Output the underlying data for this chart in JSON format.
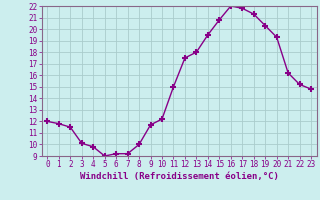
{
  "x": [
    0,
    1,
    2,
    3,
    4,
    5,
    6,
    7,
    8,
    9,
    10,
    11,
    12,
    13,
    14,
    15,
    16,
    17,
    18,
    19,
    20,
    21,
    22,
    23
  ],
  "y": [
    12.0,
    11.8,
    11.5,
    10.1,
    9.8,
    9.0,
    9.2,
    9.2,
    10.0,
    11.7,
    12.2,
    15.0,
    17.5,
    18.0,
    19.5,
    20.8,
    22.0,
    21.8,
    21.3,
    20.3,
    19.3,
    16.2,
    15.2,
    14.8
  ],
  "xlabel": "Windchill (Refroidissement éolien,°C)",
  "xlim": [
    -0.5,
    23.5
  ],
  "ylim": [
    9,
    22
  ],
  "yticks": [
    9,
    10,
    11,
    12,
    13,
    14,
    15,
    16,
    17,
    18,
    19,
    20,
    21,
    22
  ],
  "xticks": [
    0,
    1,
    2,
    3,
    4,
    5,
    6,
    7,
    8,
    9,
    10,
    11,
    12,
    13,
    14,
    15,
    16,
    17,
    18,
    19,
    20,
    21,
    22,
    23
  ],
  "line_color": "#880088",
  "marker": "+",
  "bg_color": "#cceeee",
  "grid_color": "#aacccc",
  "spine_color": "#886688",
  "tick_color": "#880088",
  "label_color": "#880088",
  "tick_fontsize": 5.5,
  "xlabel_fontsize": 6.5
}
